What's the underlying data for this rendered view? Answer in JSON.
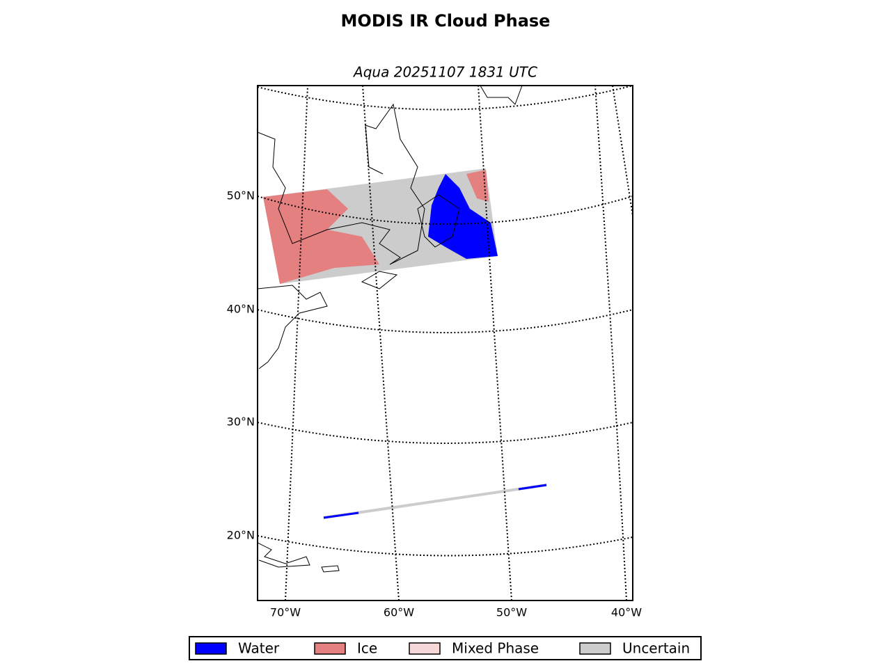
{
  "title": "MODIS IR Cloud Phase",
  "subtitle": "Aqua 20251107 1831 UTC",
  "lat_labels": [
    "50°N",
    "40°N",
    "30°N",
    "20°N"
  ],
  "lon_labels": [
    "70°W",
    "60°W",
    "50°W",
    "40°W"
  ],
  "legend": [
    {
      "label": "Water",
      "color": "#0000ff"
    },
    {
      "label": "Ice",
      "color": "#e58080"
    },
    {
      "label": "Mixed Phase",
      "color": "#f6d8d8"
    },
    {
      "label": "Uncertain",
      "color": "#cccccc"
    }
  ]
}
